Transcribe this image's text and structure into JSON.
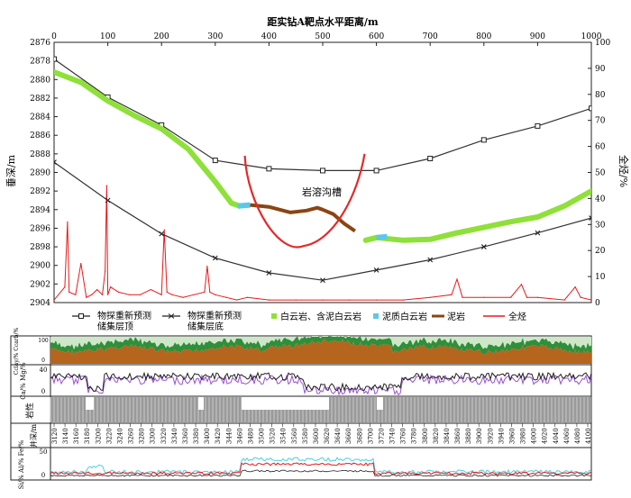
{
  "chart_data": [
    {
      "type": "line",
      "title": "距实钻A靶点水平距离/m",
      "xlabel": "距实钻A靶点水平距离/m",
      "ylabel": "垂深/m",
      "y2label": "全烃/%",
      "xlim": [
        0,
        1000
      ],
      "ylim": [
        2876,
        2904
      ],
      "y2lim": [
        0,
        100
      ],
      "xticks": [
        "0",
        "100",
        "200",
        "300",
        "400",
        "500",
        "600",
        "700",
        "800",
        "900",
        "1000"
      ],
      "yticks": [
        "2876",
        "2878",
        "2880",
        "2882",
        "2884",
        "2886",
        "2888",
        "2890",
        "2892",
        "2894",
        "2896",
        "2898",
        "2900",
        "2902",
        "2904"
      ],
      "y2ticks": [
        "0",
        "10",
        "20",
        "30",
        "40",
        "50",
        "60",
        "70",
        "80",
        "90",
        "100"
      ],
      "annotation": "岩溶沟槽",
      "series": [
        {
          "name": "物探重新预测储集层顶",
          "color": "#333333",
          "marker": "square",
          "x": [
            0,
            100,
            200,
            300,
            400,
            500,
            600,
            700,
            800,
            900,
            1000
          ],
          "y": [
            2877.8,
            2881.9,
            2884.9,
            2888.7,
            2889.6,
            2889.8,
            2889.8,
            2888.5,
            2886.5,
            2885.0,
            2883.1
          ]
        },
        {
          "name": "物探重新预测储集层底",
          "color": "#333333",
          "marker": "x",
          "x": [
            0,
            100,
            200,
            300,
            400,
            500,
            600,
            700,
            800,
            900,
            1000
          ],
          "y": [
            2888.9,
            2893.0,
            2896.6,
            2899.2,
            2900.8,
            2901.6,
            2900.5,
            2899.4,
            2898.0,
            2896.5,
            2894.9
          ]
        },
        {
          "name": "白云岩、含泥白云岩",
          "color": "#8fe03a",
          "x": [
            0,
            50,
            100,
            150,
            200,
            250,
            300,
            330,
            345,
            580,
            600,
            650,
            700,
            750,
            800,
            850,
            900,
            950,
            1000
          ],
          "y": [
            2879.2,
            2880.3,
            2882.3,
            2883.9,
            2885.3,
            2887.5,
            2891.0,
            2893.3,
            2893.6,
            2897.3,
            2897.0,
            2897.3,
            2897.2,
            2896.5,
            2895.9,
            2895.3,
            2894.8,
            2893.6,
            2892.0
          ]
        },
        {
          "name": "泥质白云岩",
          "color": "#5bc8e8",
          "x": [
            342,
            365,
            600,
            620
          ],
          "y": [
            2893.6,
            2893.5,
            2897.0,
            2896.9
          ]
        },
        {
          "name": "泥岩",
          "color": "#8b4513",
          "x": [
            365,
            400,
            440,
            470,
            490,
            500,
            520,
            540,
            560
          ],
          "y": [
            2893.5,
            2893.7,
            2894.3,
            2894.1,
            2893.8,
            2894.0,
            2894.5,
            2895.5,
            2896.3
          ]
        },
        {
          "name": "全烃",
          "color": "#e8181b",
          "axis": "y2",
          "x": [
            0,
            20,
            25,
            28,
            40,
            50,
            60,
            70,
            80,
            90,
            95,
            98,
            100,
            105,
            120,
            140,
            160,
            180,
            200,
            205,
            210,
            220,
            240,
            260,
            280,
            285,
            290,
            300,
            320,
            340,
            360,
            400,
            450,
            500,
            550,
            600,
            650,
            700,
            740,
            750,
            760,
            800,
            850,
            870,
            880,
            900,
            950,
            970,
            980,
            1000
          ],
          "y": [
            1,
            6,
            31,
            4,
            3,
            15,
            2,
            3,
            5,
            3,
            12,
            45,
            3,
            6,
            4,
            3,
            3,
            5,
            3,
            28,
            4,
            3,
            2,
            3,
            4,
            14,
            4,
            3,
            2,
            1,
            2,
            1,
            1,
            1,
            1,
            1,
            1,
            2,
            3,
            9,
            2,
            2,
            2,
            7,
            2,
            2,
            1,
            6,
            2,
            1
          ]
        }
      ],
      "legend": [
        {
          "label_line1": "物探重新预测",
          "label_line2": "储集层顶",
          "symbol": "square-line"
        },
        {
          "label_line1": "物探重新预测",
          "label_line2": "储集层底",
          "symbol": "x-line"
        },
        {
          "label": "白云岩、含泥白云岩",
          "symbol": "green-square"
        },
        {
          "label": "泥质白云岩",
          "symbol": "cyan-square"
        },
        {
          "label": "泥岩",
          "symbol": "brown-line"
        },
        {
          "label": "全烃",
          "symbol": "red-line"
        }
      ]
    },
    {
      "type": "log_track",
      "depth_ticks": [
        "3120",
        "3140",
        "3160",
        "3180",
        "3200",
        "3220",
        "3240",
        "3260",
        "3280",
        "3300",
        "3320",
        "3340",
        "3360",
        "3380",
        "3400",
        "3420",
        "3440",
        "3460",
        "3480",
        "3500",
        "3520",
        "3540",
        "3560",
        "3580",
        "3600",
        "3620",
        "3640",
        "3660",
        "3680",
        "3700",
        "3720",
        "3740",
        "3760",
        "3780",
        "3800",
        "3820",
        "3840",
        "3860",
        "3880",
        "3900",
        "3920",
        "3940",
        "3960",
        "3980",
        "4000",
        "4020",
        "4040",
        "4060",
        "4080",
        "4100"
      ],
      "depth_label": "井深/m",
      "tracks": [
        {
          "label": "Cclay/% Ccarb/%",
          "scale_min": "0",
          "scale_max": "100"
        },
        {
          "label": "Ca/% Mg/%",
          "scale_min": "0",
          "scale_max": "40"
        },
        {
          "label": "岩性"
        },
        {
          "label": "Si/% Al/% Fe/%",
          "scale_min": "0",
          "scale_max": "50"
        }
      ]
    }
  ]
}
